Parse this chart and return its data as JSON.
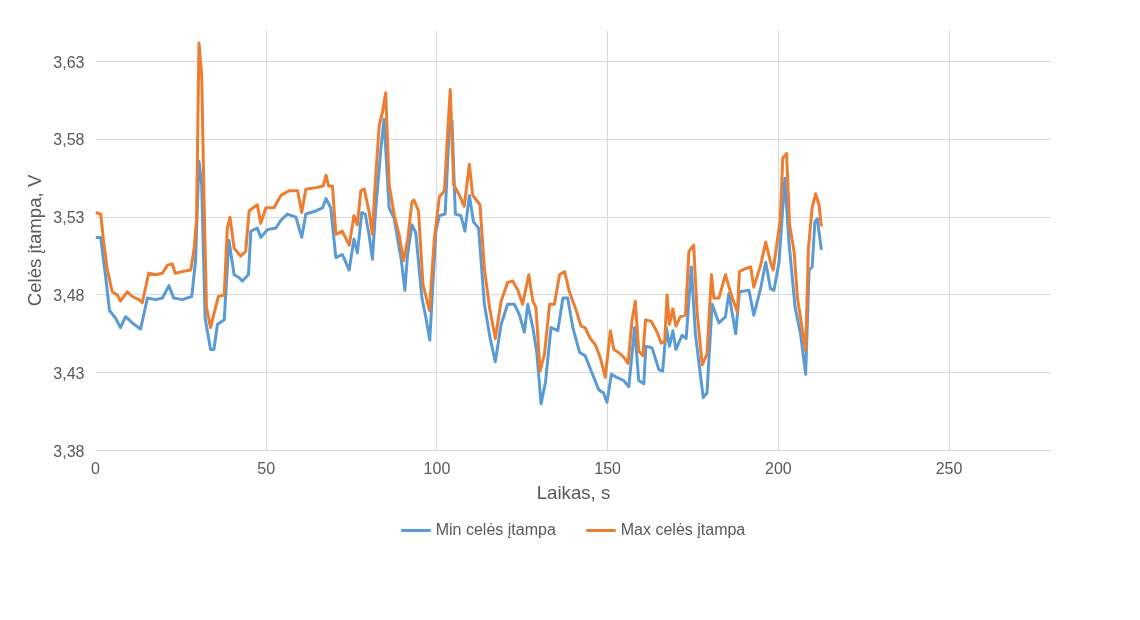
{
  "chart_data": {
    "type": "line",
    "xlabel": "Laikas, s",
    "ylabel": "Celės įtampa, V",
    "xlim": [
      0,
      280
    ],
    "xticks": [
      0,
      50,
      100,
      150,
      200,
      250
    ],
    "ylim": [
      3.38,
      3.65
    ],
    "yticks": [
      {
        "value": 3.38,
        "label": "3,38"
      },
      {
        "value": 3.43,
        "label": "3,43"
      },
      {
        "value": 3.48,
        "label": "3,48"
      },
      {
        "value": 3.53,
        "label": "3,53"
      },
      {
        "value": 3.58,
        "label": "3,58"
      },
      {
        "value": 3.63,
        "label": "3,63"
      }
    ],
    "grid": true,
    "legend": "bottom",
    "line_style": "solid",
    "marker": "none",
    "series": [
      {
        "name": "Min celės įtampa",
        "color": "#5b9bd5",
        "x": [
          0,
          1.5,
          2.9,
          4.1,
          5.9,
          7.3,
          8.8,
          10.8,
          13.2,
          15.2,
          17.6,
          19.6,
          21.5,
          22.9,
          25.4,
          28.2,
          29.3,
          30.3,
          31.1,
          32.1,
          33.7,
          34.7,
          35.7,
          37.7,
          39.1,
          40.6,
          42.1,
          43,
          44.8,
          45.5,
          47.4,
          48.4,
          50.4,
          52.8,
          54.3,
          56.2,
          58.7,
          60.4,
          61.6,
          64.5,
          66.5,
          67.5,
          68.9,
          70.4,
          72.3,
          74.3,
          75.7,
          76.7,
          78,
          79,
          80.1,
          81.1,
          82.1,
          83.6,
          84.5,
          86,
          87.5,
          88.5,
          89.6,
          90.6,
          91.4,
          92.7,
          93.8,
          95.6,
          96.8,
          97.9,
          99.7,
          100.7,
          102.4,
          103.6,
          104.4,
          105.4,
          107,
          108.2,
          109.5,
          110.7,
          112.2,
          113.9,
          115.6,
          117.1,
          118.8,
          120.7,
          122.7,
          124.2,
          125.6,
          126.6,
          128.1,
          129.3,
          130.5,
          131.8,
          133.4,
          135.4,
          136.9,
          138.3,
          139.8,
          141.8,
          143.4,
          145.4,
          147.4,
          148.8,
          149.8,
          151.1,
          152.7,
          154.7,
          156.2,
          157.9,
          159.1,
          160.6,
          161.2,
          163,
          165,
          166.1,
          167.2,
          168.1,
          169.1,
          170,
          171.8,
          173,
          174.5,
          175.7,
          178,
          179.1,
          180.6,
          182.6,
          184.5,
          185.5,
          187.5,
          188.6,
          191.4,
          192.8,
          194.8,
          196.3,
          197.7,
          198.7,
          200.2,
          201.2,
          201.9,
          203.1,
          204.9,
          206.5,
          208,
          209,
          209.9,
          210.7,
          211.4,
          212.6
        ],
        "values": [
          3.517,
          3.517,
          3.493,
          3.47,
          3.465,
          3.459,
          3.466,
          3.462,
          3.458,
          3.478,
          3.477,
          3.478,
          3.486,
          3.478,
          3.477,
          3.479,
          3.502,
          3.566,
          3.551,
          3.465,
          3.445,
          3.445,
          3.461,
          3.464,
          3.515,
          3.493,
          3.491,
          3.489,
          3.493,
          3.521,
          3.523,
          3.517,
          3.522,
          3.523,
          3.528,
          3.532,
          3.53,
          3.517,
          3.532,
          3.534,
          3.536,
          3.542,
          3.536,
          3.504,
          3.506,
          3.496,
          3.516,
          3.507,
          3.533,
          3.532,
          3.519,
          3.503,
          3.536,
          3.574,
          3.593,
          3.536,
          3.529,
          3.516,
          3.502,
          3.483,
          3.506,
          3.525,
          3.52,
          3.478,
          3.465,
          3.451,
          3.521,
          3.531,
          3.532,
          3.587,
          3.592,
          3.532,
          3.531,
          3.521,
          3.544,
          3.527,
          3.523,
          3.474,
          3.452,
          3.437,
          3.461,
          3.474,
          3.474,
          3.467,
          3.456,
          3.474,
          3.459,
          3.442,
          3.41,
          3.424,
          3.459,
          3.457,
          3.478,
          3.478,
          3.459,
          3.443,
          3.441,
          3.43,
          3.419,
          3.417,
          3.411,
          3.429,
          3.427,
          3.425,
          3.421,
          3.459,
          3.425,
          3.423,
          3.447,
          3.446,
          3.432,
          3.431,
          3.459,
          3.447,
          3.457,
          3.445,
          3.454,
          3.452,
          3.498,
          3.455,
          3.414,
          3.417,
          3.474,
          3.462,
          3.466,
          3.481,
          3.455,
          3.482,
          3.483,
          3.467,
          3.484,
          3.501,
          3.484,
          3.483,
          3.501,
          3.533,
          3.555,
          3.514,
          3.472,
          3.455,
          3.429,
          3.496,
          3.498,
          3.527,
          3.529,
          3.509
        ]
      },
      {
        "name": "Max celės įtampa",
        "color": "#ed7d31",
        "x": [
          0,
          1.5,
          2.4,
          3.4,
          4.9,
          6.4,
          7.3,
          9.3,
          10.8,
          12.7,
          13.7,
          15.6,
          17.6,
          19.6,
          21,
          22.5,
          23.3,
          25.4,
          27.9,
          28.9,
          29.6,
          30.3,
          31.1,
          31.8,
          32.5,
          33.7,
          34.7,
          36,
          37.7,
          38.6,
          39.4,
          40.6,
          42.5,
          44,
          45,
          47.4,
          48.4,
          49.9,
          52.3,
          54.3,
          56.7,
          59.2,
          60.4,
          61.6,
          64.5,
          66.7,
          67.5,
          68.3,
          69.4,
          70.4,
          72.3,
          74.3,
          75.7,
          76.7,
          77.7,
          78.7,
          80.1,
          81.1,
          81.9,
          83.1,
          84.1,
          85,
          86,
          87.5,
          88.9,
          90.2,
          91.4,
          92.7,
          93.3,
          94.6,
          95.9,
          97.8,
          99.2,
          100.7,
          102.2,
          103.1,
          103.9,
          104.9,
          106.6,
          108,
          109.5,
          110.5,
          112.6,
          113.9,
          115.4,
          117.1,
          118.8,
          120.7,
          122.2,
          123.7,
          125.1,
          126.9,
          128.1,
          129,
          130.2,
          131.5,
          133,
          134.4,
          135.9,
          137.4,
          138.8,
          140.8,
          142.2,
          143.4,
          144.9,
          146.4,
          147.8,
          149.3,
          150.8,
          151.8,
          153.2,
          154.7,
          156,
          157.1,
          158.1,
          159.1,
          160.3,
          161.1,
          162.8,
          164.5,
          165.7,
          166.7,
          167.4,
          168.1,
          169.1,
          170,
          171.3,
          172.8,
          173.8,
          175.2,
          176.2,
          177.7,
          179.1,
          180.4,
          181.1,
          182.6,
          184.5,
          186.5,
          188,
          188.6,
          190.4,
          191.9,
          192.8,
          194.8,
          196.3,
          197.7,
          198.5,
          199.7,
          200.5,
          201.3,
          202.4,
          203.3,
          204.6,
          205.6,
          206.5,
          208,
          208.8,
          209.9,
          210.9,
          211.9,
          212.6
        ],
        "values": [
          3.533,
          3.532,
          3.514,
          3.497,
          3.482,
          3.48,
          3.476,
          3.482,
          3.479,
          3.477,
          3.475,
          3.494,
          3.493,
          3.494,
          3.499,
          3.5,
          3.494,
          3.495,
          3.496,
          3.51,
          3.529,
          3.642,
          3.621,
          3.54,
          3.472,
          3.459,
          3.468,
          3.479,
          3.48,
          3.523,
          3.53,
          3.51,
          3.505,
          3.508,
          3.534,
          3.538,
          3.526,
          3.536,
          3.536,
          3.544,
          3.547,
          3.547,
          3.533,
          3.548,
          3.549,
          3.55,
          3.557,
          3.55,
          3.55,
          3.519,
          3.521,
          3.512,
          3.531,
          3.525,
          3.547,
          3.548,
          3.534,
          3.519,
          3.551,
          3.589,
          3.598,
          3.61,
          3.551,
          3.531,
          3.519,
          3.502,
          3.515,
          3.54,
          3.541,
          3.534,
          3.487,
          3.47,
          3.515,
          3.543,
          3.547,
          3.583,
          3.612,
          3.551,
          3.544,
          3.537,
          3.564,
          3.544,
          3.538,
          3.497,
          3.472,
          3.452,
          3.476,
          3.488,
          3.489,
          3.483,
          3.474,
          3.493,
          3.476,
          3.472,
          3.431,
          3.442,
          3.474,
          3.474,
          3.493,
          3.495,
          3.482,
          3.47,
          3.46,
          3.459,
          3.452,
          3.448,
          3.44,
          3.427,
          3.457,
          3.445,
          3.443,
          3.44,
          3.436,
          3.463,
          3.476,
          3.444,
          3.441,
          3.464,
          3.463,
          3.456,
          3.449,
          3.45,
          3.48,
          3.461,
          3.471,
          3.46,
          3.466,
          3.467,
          3.508,
          3.512,
          3.469,
          3.435,
          3.442,
          3.493,
          3.478,
          3.478,
          3.493,
          3.478,
          3.469,
          3.495,
          3.497,
          3.498,
          3.485,
          3.499,
          3.514,
          3.501,
          3.496,
          3.515,
          3.527,
          3.568,
          3.571,
          3.525,
          3.508,
          3.478,
          3.465,
          3.444,
          3.51,
          3.536,
          3.545,
          3.538,
          3.524
        ]
      }
    ]
  }
}
